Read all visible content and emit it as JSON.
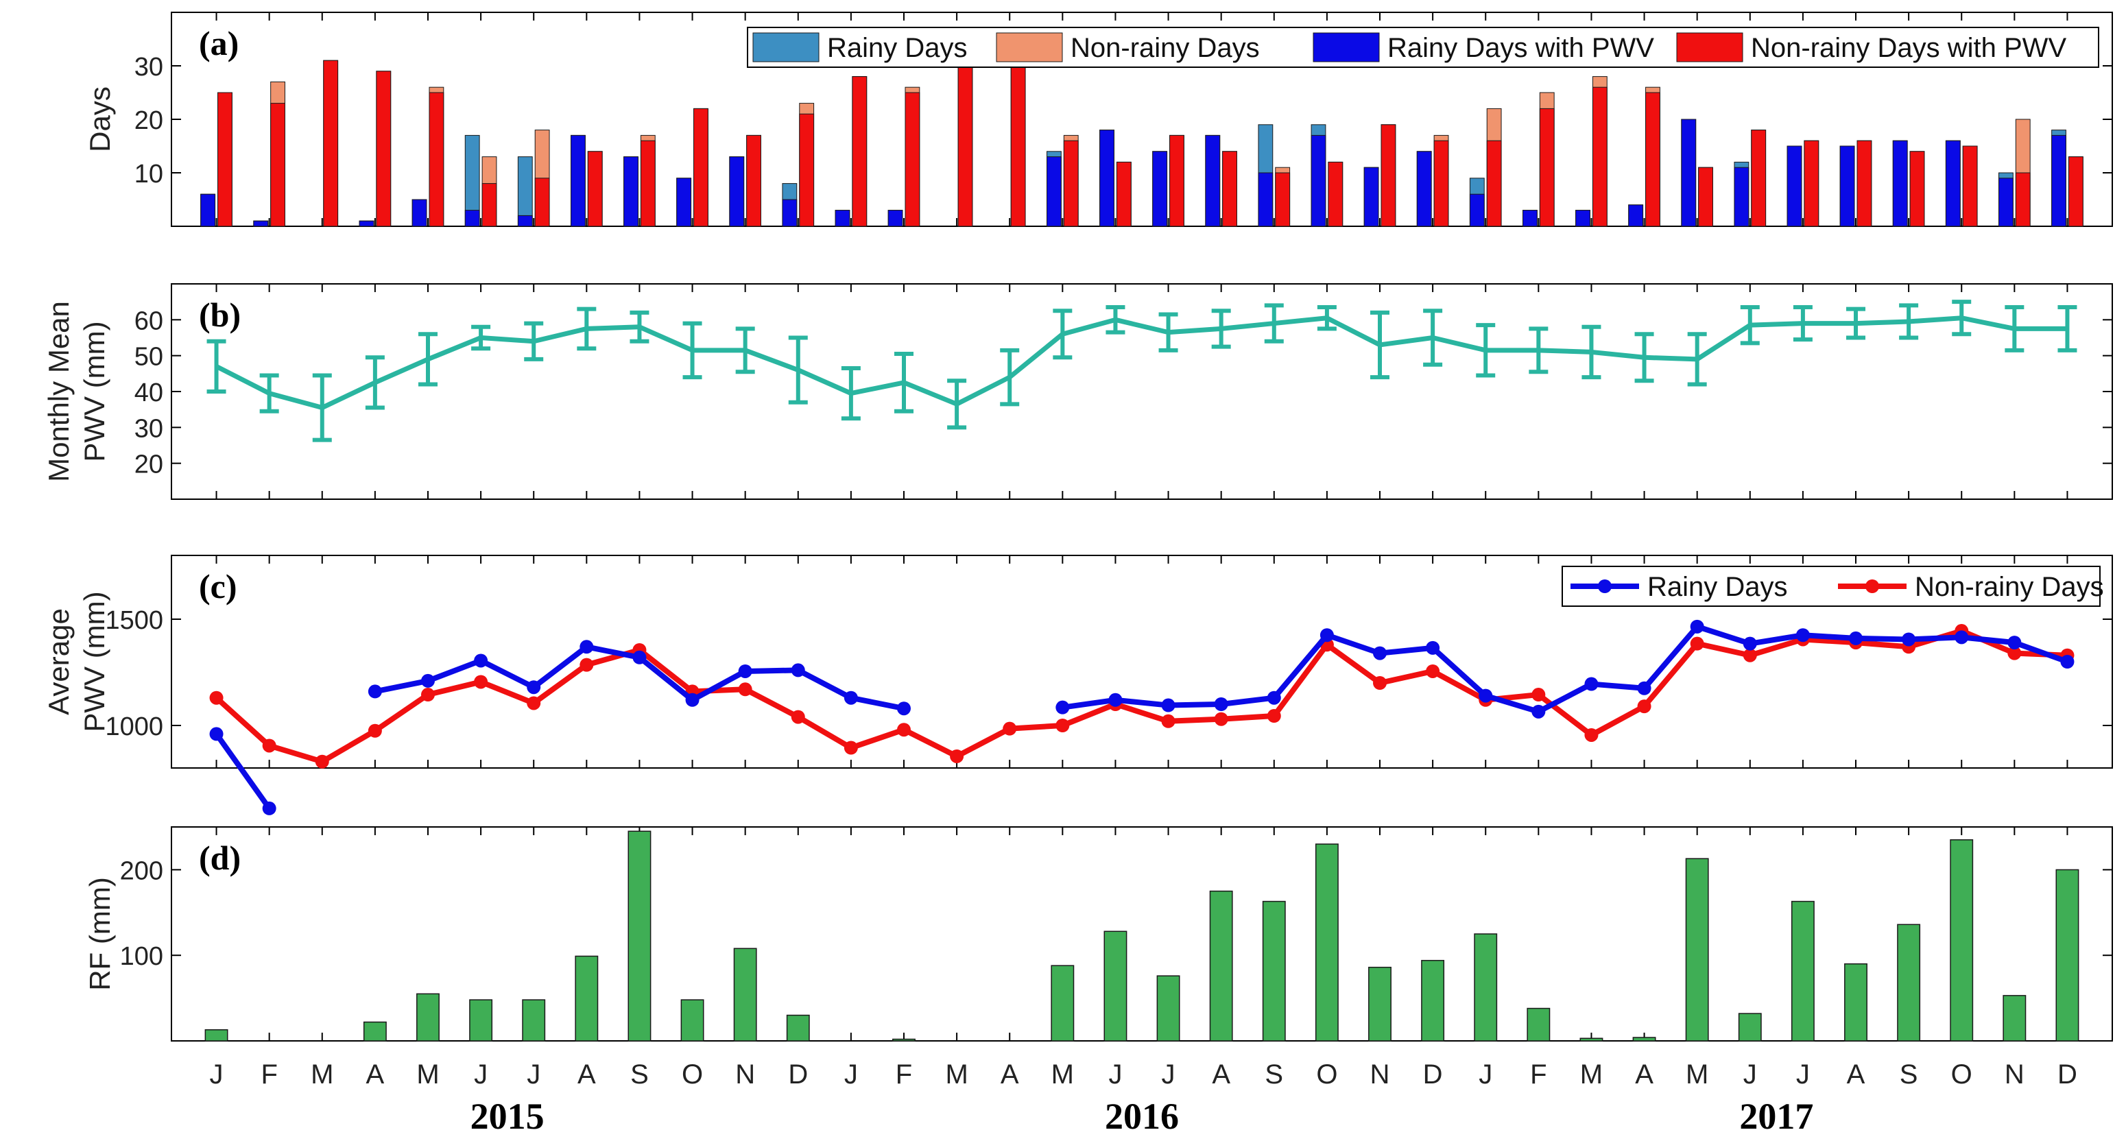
{
  "months": [
    "J",
    "F",
    "M",
    "A",
    "M",
    "J",
    "J",
    "A",
    "S",
    "O",
    "N",
    "D",
    "J",
    "F",
    "M",
    "A",
    "M",
    "J",
    "J",
    "A",
    "S",
    "O",
    "N",
    "D",
    "J",
    "F",
    "M",
    "A",
    "M",
    "J",
    "J",
    "A",
    "S",
    "O",
    "N",
    "D"
  ],
  "years": [
    "2015",
    "2016",
    "2017"
  ],
  "colors": {
    "rainy_days": "#3d8fc2",
    "nonrainy_days": "#f0946e",
    "rainy_pwv": "#0a0ae6",
    "nonrainy_pwv": "#f01010",
    "mean_pwv": "#2ab5a0",
    "rf": "#3fae55"
  },
  "chart_data": [
    {
      "type": "bar",
      "panel_label": "(a)",
      "ylabel": "Days",
      "ylim": [
        0,
        40
      ],
      "yticks": [
        10,
        20,
        30
      ],
      "legend": [
        "Rainy Days",
        "Non-rainy Days",
        "Rainy Days with PWV",
        "Non-rainy Days with PWV"
      ],
      "series": [
        {
          "name": "Rainy Days",
          "values": [
            6,
            1,
            0,
            1,
            5,
            17,
            13,
            17,
            13,
            9,
            13,
            8,
            3,
            3,
            0,
            0,
            14,
            18,
            14,
            17,
            19,
            19,
            11,
            14,
            9,
            3,
            3,
            4,
            20,
            12,
            15,
            15,
            16,
            16,
            10,
            18
          ]
        },
        {
          "name": "Non-rainy Days",
          "values": [
            25,
            27,
            31,
            29,
            26,
            13,
            18,
            14,
            17,
            22,
            17,
            23,
            28,
            26,
            31,
            30,
            17,
            12,
            17,
            14,
            11,
            12,
            19,
            17,
            22,
            25,
            28,
            26,
            11,
            18,
            16,
            16,
            14,
            15,
            20,
            13
          ]
        },
        {
          "name": "Rainy Days with PWV",
          "values": [
            6,
            1,
            0,
            1,
            5,
            3,
            2,
            17,
            13,
            9,
            13,
            5,
            3,
            3,
            0,
            0,
            13,
            18,
            14,
            17,
            10,
            17,
            11,
            14,
            6,
            3,
            3,
            4,
            20,
            11,
            15,
            15,
            16,
            16,
            9,
            17
          ]
        },
        {
          "name": "Non-rainy Days with PWV",
          "values": [
            25,
            23,
            31,
            29,
            25,
            8,
            9,
            14,
            16,
            22,
            17,
            21,
            28,
            25,
            31,
            30,
            16,
            12,
            17,
            14,
            10,
            12,
            19,
            16,
            16,
            22,
            26,
            25,
            11,
            18,
            16,
            16,
            14,
            15,
            10,
            13
          ]
        }
      ]
    },
    {
      "type": "line",
      "panel_label": "(b)",
      "ylabel": [
        "Monthly Mean",
        "PWV (mm)"
      ],
      "ylim": [
        10,
        70
      ],
      "yticks": [
        20,
        30,
        40,
        50,
        60
      ],
      "series": [
        {
          "name": "Monthly Mean PWV",
          "values": [
            47,
            39.5,
            35.5,
            42.5,
            49,
            55,
            54,
            57.5,
            58,
            51.5,
            51.5,
            46,
            39.5,
            42.5,
            36.5,
            44,
            56,
            60,
            56.5,
            57.5,
            59,
            60.5,
            53,
            55,
            51.5,
            51.5,
            51,
            49.5,
            49,
            58.5,
            59,
            59,
            59.5,
            60.5,
            57.5,
            57.5
          ],
          "error": [
            7,
            5,
            9,
            7,
            7,
            3,
            5,
            5.5,
            4,
            7.5,
            6,
            9,
            7,
            8,
            6.5,
            7.5,
            6.5,
            3.5,
            5,
            5,
            5,
            3,
            9,
            7.5,
            7,
            6,
            7,
            6.5,
            7,
            5,
            4.5,
            4,
            4.5,
            4.5,
            6,
            6
          ]
        }
      ]
    },
    {
      "type": "line",
      "panel_label": "(c)",
      "ylabel": [
        "Average",
        "PWV (mm)"
      ],
      "ylim": [
        800,
        1800
      ],
      "yticks": [
        1000,
        1500
      ],
      "legend": [
        "Rainy Days",
        "Non-rainy Days"
      ],
      "series": [
        {
          "name": "Rainy Days",
          "values": [
            960,
            610,
            null,
            1160,
            1210,
            1305,
            1180,
            1370,
            1320,
            1120,
            1255,
            1260,
            1130,
            1080,
            null,
            null,
            1085,
            1120,
            1095,
            1100,
            1130,
            1425,
            1340,
            1365,
            1140,
            1065,
            1195,
            1175,
            1465,
            1385,
            1425,
            1410,
            1405,
            1415,
            1390,
            1300
          ]
        },
        {
          "name": "Non-rainy Days",
          "values": [
            1130,
            905,
            830,
            975,
            1145,
            1205,
            1105,
            1285,
            1355,
            1160,
            1170,
            1040,
            895,
            980,
            855,
            985,
            1000,
            1100,
            1020,
            1030,
            1045,
            1380,
            1200,
            1255,
            1120,
            1145,
            955,
            1090,
            1385,
            1330,
            1405,
            1390,
            1370,
            1445,
            1340,
            1330
          ]
        }
      ]
    },
    {
      "type": "bar",
      "panel_label": "(d)",
      "ylabel": "RF (mm)",
      "ylim": [
        0,
        250
      ],
      "yticks": [
        100,
        200
      ],
      "categories": [
        "J",
        "F",
        "M",
        "A",
        "M",
        "J",
        "J",
        "A",
        "S",
        "O",
        "N",
        "D",
        "J",
        "F",
        "M",
        "A",
        "M",
        "J",
        "J",
        "A",
        "S",
        "O",
        "N",
        "D",
        "J",
        "F",
        "M",
        "A",
        "M",
        "J",
        "J",
        "A",
        "S",
        "O",
        "N",
        "D"
      ],
      "series": [
        {
          "name": "RF",
          "values": [
            13,
            0,
            0,
            22,
            55,
            48,
            48,
            99,
            245,
            48,
            108,
            30,
            0,
            2,
            0,
            0,
            88,
            128,
            76,
            175,
            163,
            230,
            86,
            94,
            125,
            38,
            3,
            4,
            213,
            32,
            163,
            90,
            136,
            235,
            53,
            200
          ]
        }
      ]
    }
  ]
}
